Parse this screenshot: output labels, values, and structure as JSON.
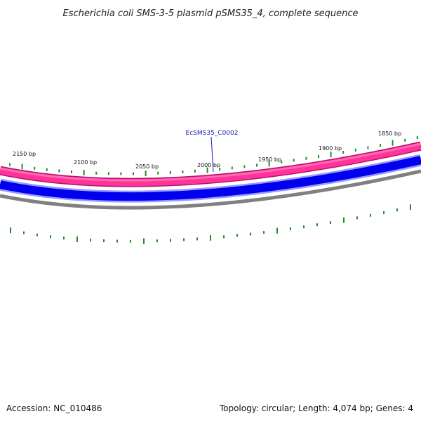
{
  "title": "Escherichia coli SMS-3-5 plasmid pSMS35_4, complete sequence",
  "footer": {
    "accession": "Accession: NC_010486",
    "summary": "Topology: circular; Length: 4,074 bp; Genes: 4"
  },
  "gene_label": "EcSMS35_C0002",
  "ruler_labels": [
    "2150 bp",
    "2100 bp",
    "2050 bp",
    "2000 bp",
    "1950 bp",
    "1900 bp",
    "1850 bp"
  ],
  "colors": {
    "forward_strand": "#ff3399",
    "forward_strand_light": "#ff99cc",
    "forward_strand_edge": "#b8106a",
    "reverse_strand": "#0000ee",
    "reverse_strand_light": "#9999ff",
    "backbone": "#808080",
    "ticks": "#228b22",
    "gene_label": "#1a1ab8"
  }
}
